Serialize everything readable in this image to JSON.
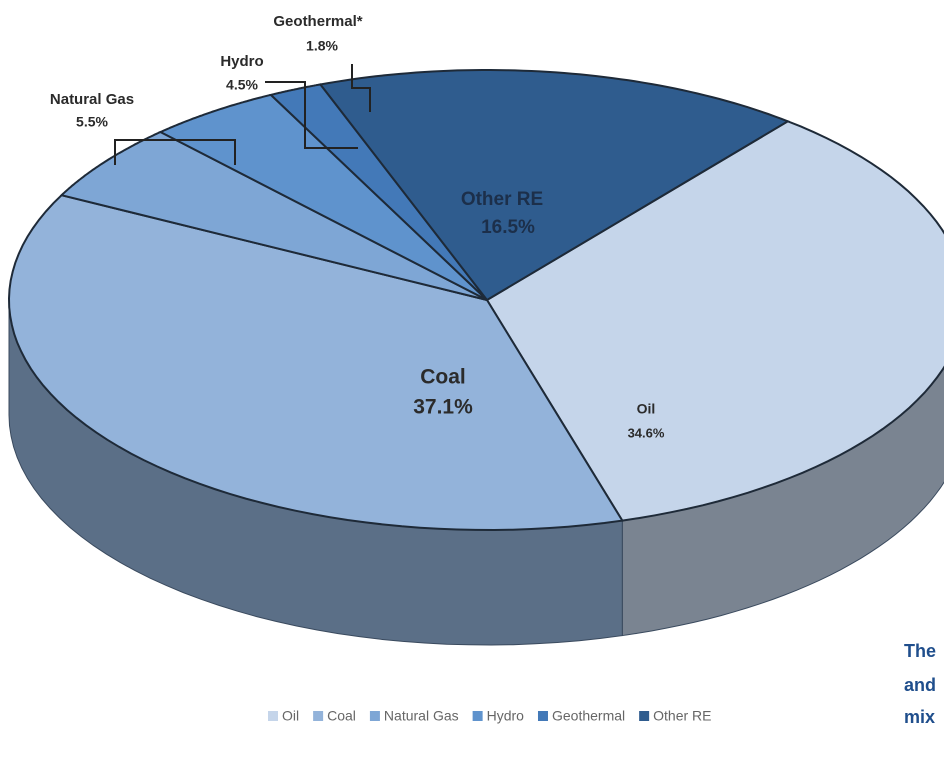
{
  "chart_data": {
    "type": "pie",
    "categories": [
      "Oil",
      "Coal",
      "Natural Gas",
      "Hydro",
      "Geothermal",
      "Other RE"
    ],
    "slice_labels": [
      "Oil",
      "Coal",
      "Natural Gas",
      "Hydro",
      "Geothermal*",
      "Other RE"
    ],
    "values": [
      34.6,
      37.1,
      5.5,
      4.5,
      1.8,
      16.5
    ],
    "value_labels": [
      "34.6%",
      "37.1%",
      "5.5%",
      "4.5%",
      "1.8%",
      "16.5%"
    ],
    "colors": [
      "#c5d5ea",
      "#93b3da",
      "#7ea6d5",
      "#5f93cd",
      "#4379b8",
      "#2f5c8e"
    ],
    "legend": "bottom",
    "annotations": [
      "The",
      "and",
      "mix"
    ]
  }
}
